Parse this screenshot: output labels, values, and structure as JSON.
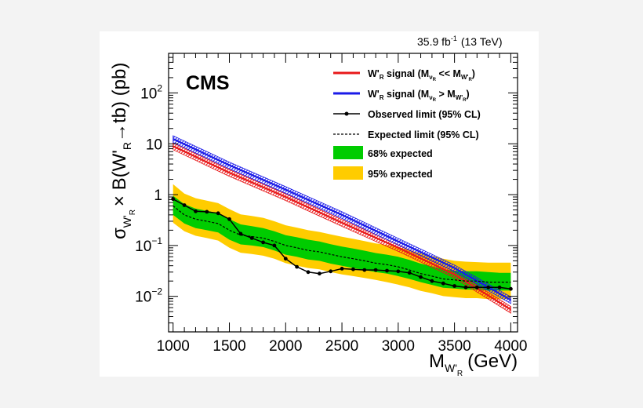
{
  "chart_data": {
    "type": "line",
    "logo": "CMS",
    "lumi_label": "35.9 fb",
    "lumi_exp": "-1",
    "energy_label": "(13 TeV)",
    "xlabel": "M",
    "xlabel_sub": "W'",
    "xlabel_subsub": "R",
    "xlabel_unit": "(GeV)",
    "ylabel": "σ",
    "ylabel_rest": "× B(W'",
    "ylabel_sub_r": "R",
    "ylabel_arrow": "→tb) (pb)",
    "xlim": [
      960,
      4060
    ],
    "ylim": [
      0.002,
      600
    ],
    "yscale": "log",
    "x_ticks": [
      1000,
      1500,
      2000,
      2500,
      3000,
      3500,
      4000
    ],
    "y_ticks": [
      {
        "value": 0.01,
        "mant": "10",
        "exp": "−2"
      },
      {
        "value": 0.1,
        "mant": "10",
        "exp": "−1"
      },
      {
        "value": 1,
        "mant": "1",
        "exp": ""
      },
      {
        "value": 10,
        "mant": "10",
        "exp": ""
      },
      {
        "value": 100,
        "mant": "10",
        "exp": "2"
      }
    ],
    "x": [
      1000,
      1100,
      1200,
      1300,
      1400,
      1500,
      1600,
      1700,
      1800,
      1900,
      2000,
      2100,
      2200,
      2300,
      2400,
      2500,
      2600,
      2700,
      2800,
      2900,
      3000,
      3100,
      3200,
      3300,
      3400,
      3500,
      3600,
      3700,
      3800,
      3900,
      4000
    ],
    "series": [
      {
        "name": "Observed limit (95% CL)",
        "values": [
          0.82,
          0.62,
          0.47,
          0.46,
          0.43,
          0.33,
          0.17,
          0.14,
          0.115,
          0.1,
          0.055,
          0.038,
          0.03,
          0.028,
          0.031,
          0.035,
          0.034,
          0.033,
          0.033,
          0.032,
          0.031,
          0.029,
          0.024,
          0.02,
          0.018,
          0.016,
          0.015,
          0.015,
          0.015,
          0.015,
          0.014
        ]
      },
      {
        "name": "Expected limit (95% CL)",
        "values": [
          0.6,
          0.4,
          0.33,
          0.3,
          0.27,
          0.2,
          0.16,
          0.15,
          0.14,
          0.12,
          0.1,
          0.09,
          0.08,
          0.075,
          0.067,
          0.06,
          0.055,
          0.05,
          0.045,
          0.042,
          0.038,
          0.033,
          0.028,
          0.025,
          0.022,
          0.021,
          0.02,
          0.02,
          0.019,
          0.019,
          0.019
        ]
      }
    ],
    "band68": {
      "name": "68% expected",
      "low": [
        0.4,
        0.27,
        0.22,
        0.2,
        0.18,
        0.13,
        0.105,
        0.1,
        0.093,
        0.08,
        0.066,
        0.06,
        0.053,
        0.05,
        0.044,
        0.04,
        0.036,
        0.033,
        0.03,
        0.028,
        0.025,
        0.022,
        0.019,
        0.0168,
        0.0148,
        0.0142,
        0.0136,
        0.0135,
        0.013,
        0.013,
        0.013
      ],
      "high": [
        0.95,
        0.65,
        0.53,
        0.48,
        0.43,
        0.33,
        0.26,
        0.24,
        0.22,
        0.19,
        0.16,
        0.145,
        0.13,
        0.12,
        0.106,
        0.095,
        0.087,
        0.079,
        0.071,
        0.066,
        0.06,
        0.052,
        0.044,
        0.039,
        0.034,
        0.032,
        0.031,
        0.031,
        0.03,
        0.029,
        0.029
      ]
    },
    "band95": {
      "name": "95% expected",
      "low": [
        0.28,
        0.19,
        0.155,
        0.14,
        0.125,
        0.09,
        0.072,
        0.068,
        0.063,
        0.055,
        0.045,
        0.04,
        0.036,
        0.034,
        0.03,
        0.027,
        0.025,
        0.023,
        0.021,
        0.019,
        0.017,
        0.015,
        0.0128,
        0.0115,
        0.0101,
        0.0096,
        0.0092,
        0.0092,
        0.0088,
        0.0088,
        0.0088
      ],
      "high": [
        1.6,
        1.05,
        0.85,
        0.76,
        0.68,
        0.52,
        0.41,
        0.38,
        0.35,
        0.3,
        0.25,
        0.225,
        0.2,
        0.185,
        0.165,
        0.148,
        0.135,
        0.122,
        0.11,
        0.102,
        0.093,
        0.082,
        0.07,
        0.062,
        0.055,
        0.05,
        0.048,
        0.047,
        0.046,
        0.046,
        0.046
      ]
    },
    "theory": [
      {
        "name": "W'R signal (MνR << MW'R)",
        "label_main": "W'",
        "label_sub": "R",
        "label_mid": " signal (M",
        "label_sub2": "ν",
        "label_sub2b": "R",
        "label_op": " << M",
        "label_sub3": "W'",
        "label_sub3b": "R",
        "label_end": ")",
        "color": "#e8191a",
        "x": [
          1000,
          1500,
          2000,
          2500,
          3000,
          3500,
          4000
        ],
        "center": [
          9.0,
          2.7,
          0.9,
          0.28,
          0.09,
          0.027,
          0.0055
        ],
        "low_ratio": 0.85,
        "high_ratio": 1.15
      },
      {
        "name": "W'R signal (MνR > MW'R)",
        "label_main": "W'",
        "label_sub": "R",
        "label_mid": " signal (M",
        "label_sub2": "ν",
        "label_sub2b": "R",
        "label_op": " > M",
        "label_sub3": "W'",
        "label_sub3b": "R",
        "label_end": ")",
        "color": "#1a1ae8",
        "x": [
          1000,
          1500,
          2000,
          2500,
          3000,
          3500,
          4000
        ],
        "center": [
          12.5,
          3.8,
          1.25,
          0.4,
          0.12,
          0.036,
          0.0085
        ],
        "low_ratio": 0.85,
        "high_ratio": 1.15
      }
    ],
    "legend_placement": "top-right",
    "colors": {
      "band68": "#00cc00",
      "band95": "#ffcc00",
      "observed": "#000000",
      "expected": "#000000"
    }
  }
}
